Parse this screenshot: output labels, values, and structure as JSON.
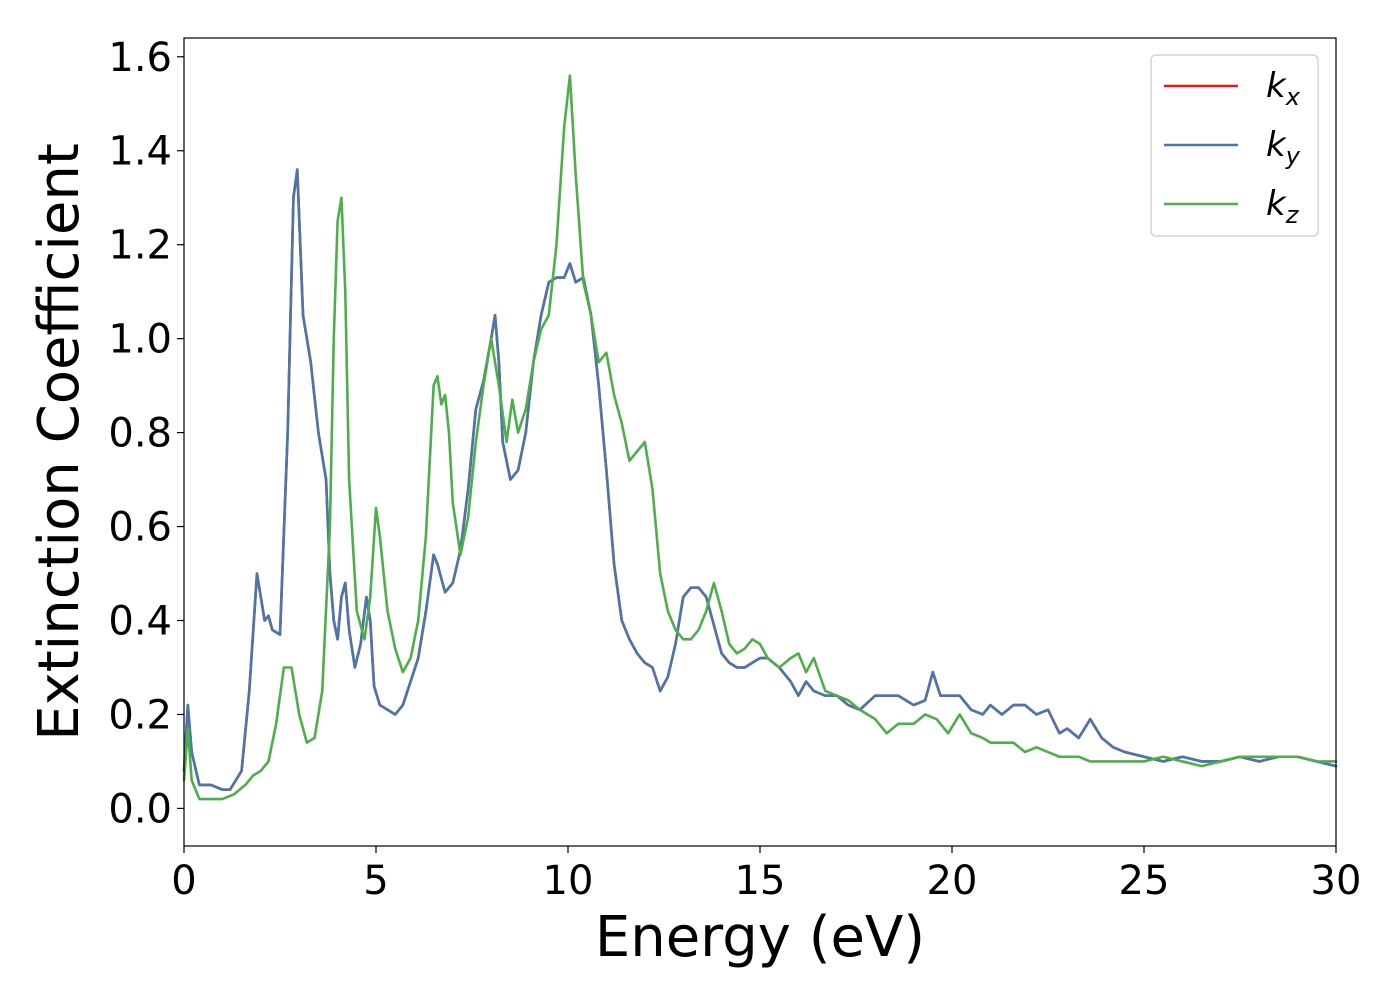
{
  "chart_data": {
    "type": "line",
    "title": "",
    "xlabel": "Energy (eV)",
    "ylabel": "Extinction Coefficient",
    "xlim": [
      0,
      30
    ],
    "ylim": [
      -0.08,
      1.64
    ],
    "xticks": [
      0,
      5,
      10,
      15,
      20,
      25,
      30
    ],
    "xtick_labels": [
      "0",
      "5",
      "10",
      "15",
      "20",
      "25",
      "30"
    ],
    "yticks": [
      0.0,
      0.2,
      0.4,
      0.6,
      0.8,
      1.0,
      1.2,
      1.4,
      1.6
    ],
    "ytick_labels": [
      "0.0",
      "0.2",
      "0.4",
      "0.6",
      "0.8",
      "1.0",
      "1.2",
      "1.4",
      "1.6"
    ],
    "grid": false,
    "legend_position": "top-right",
    "series": [
      {
        "name": "k",
        "subscript": "x",
        "color": "#e41a1c",
        "x": [
          0,
          0.1,
          0.2,
          0.4,
          0.7,
          1.0,
          1.2,
          1.5,
          1.7,
          1.9,
          2.0,
          2.1,
          2.2,
          2.3,
          2.5,
          2.7,
          2.85,
          2.95,
          3.1,
          3.3,
          3.5,
          3.7,
          3.8,
          3.9,
          4.0,
          4.1,
          4.2,
          4.3,
          4.45,
          4.6,
          4.75,
          4.85,
          4.95,
          5.1,
          5.3,
          5.5,
          5.7,
          5.9,
          6.1,
          6.3,
          6.5,
          6.6,
          6.8,
          7.0,
          7.2,
          7.4,
          7.6,
          7.8,
          8.0,
          8.1,
          8.2,
          8.3,
          8.5,
          8.7,
          8.9,
          9.1,
          9.3,
          9.5,
          9.7,
          9.9,
          10.05,
          10.2,
          10.4,
          10.6,
          10.8,
          11.0,
          11.2,
          11.4,
          11.6,
          11.8,
          12.0,
          12.2,
          12.4,
          12.6,
          12.8,
          13.0,
          13.2,
          13.4,
          13.6,
          13.8,
          14.0,
          14.2,
          14.4,
          14.6,
          14.8,
          15.0,
          15.2,
          15.5,
          15.8,
          16.0,
          16.2,
          16.4,
          16.7,
          17.0,
          17.3,
          17.6,
          18.0,
          18.3,
          18.6,
          19.0,
          19.3,
          19.5,
          19.7,
          19.9,
          20.2,
          20.5,
          20.8,
          21.0,
          21.3,
          21.6,
          21.9,
          22.2,
          22.5,
          22.8,
          23.0,
          23.3,
          23.6,
          23.9,
          24.2,
          24.5,
          25.0,
          25.5,
          26.0,
          26.5,
          27.0,
          27.5,
          28.0,
          28.5,
          29.0,
          29.5,
          30.0
        ],
        "y": [
          0.08,
          0.22,
          0.12,
          0.05,
          0.05,
          0.04,
          0.04,
          0.08,
          0.25,
          0.5,
          0.45,
          0.4,
          0.41,
          0.38,
          0.37,
          0.8,
          1.3,
          1.36,
          1.05,
          0.95,
          0.8,
          0.7,
          0.5,
          0.4,
          0.36,
          0.45,
          0.48,
          0.38,
          0.3,
          0.35,
          0.45,
          0.4,
          0.26,
          0.22,
          0.21,
          0.2,
          0.22,
          0.27,
          0.32,
          0.42,
          0.54,
          0.52,
          0.46,
          0.48,
          0.55,
          0.68,
          0.85,
          0.91,
          1.0,
          1.05,
          0.95,
          0.78,
          0.7,
          0.72,
          0.8,
          0.95,
          1.05,
          1.12,
          1.13,
          1.13,
          1.16,
          1.12,
          1.13,
          1.05,
          0.9,
          0.72,
          0.52,
          0.4,
          0.36,
          0.33,
          0.31,
          0.3,
          0.25,
          0.28,
          0.35,
          0.45,
          0.47,
          0.47,
          0.45,
          0.39,
          0.33,
          0.31,
          0.3,
          0.3,
          0.31,
          0.32,
          0.32,
          0.3,
          0.27,
          0.24,
          0.27,
          0.25,
          0.24,
          0.24,
          0.22,
          0.21,
          0.24,
          0.24,
          0.24,
          0.22,
          0.23,
          0.29,
          0.24,
          0.24,
          0.24,
          0.21,
          0.2,
          0.22,
          0.2,
          0.22,
          0.22,
          0.2,
          0.21,
          0.16,
          0.17,
          0.15,
          0.19,
          0.15,
          0.13,
          0.12,
          0.11,
          0.1,
          0.11,
          0.1,
          0.1,
          0.11,
          0.1,
          0.11,
          0.11,
          0.1,
          0.09
        ]
      },
      {
        "name": "k",
        "subscript": "y",
        "color": "#4a76ae",
        "x": [
          0,
          0.1,
          0.2,
          0.4,
          0.7,
          1.0,
          1.2,
          1.5,
          1.7,
          1.9,
          2.0,
          2.1,
          2.2,
          2.3,
          2.5,
          2.7,
          2.85,
          2.95,
          3.1,
          3.3,
          3.5,
          3.7,
          3.8,
          3.9,
          4.0,
          4.1,
          4.2,
          4.3,
          4.45,
          4.6,
          4.75,
          4.85,
          4.95,
          5.1,
          5.3,
          5.5,
          5.7,
          5.9,
          6.1,
          6.3,
          6.5,
          6.6,
          6.8,
          7.0,
          7.2,
          7.4,
          7.6,
          7.8,
          8.0,
          8.1,
          8.2,
          8.3,
          8.5,
          8.7,
          8.9,
          9.1,
          9.3,
          9.5,
          9.7,
          9.9,
          10.05,
          10.2,
          10.4,
          10.6,
          10.8,
          11.0,
          11.2,
          11.4,
          11.6,
          11.8,
          12.0,
          12.2,
          12.4,
          12.6,
          12.8,
          13.0,
          13.2,
          13.4,
          13.6,
          13.8,
          14.0,
          14.2,
          14.4,
          14.6,
          14.8,
          15.0,
          15.2,
          15.5,
          15.8,
          16.0,
          16.2,
          16.4,
          16.7,
          17.0,
          17.3,
          17.6,
          18.0,
          18.3,
          18.6,
          19.0,
          19.3,
          19.5,
          19.7,
          19.9,
          20.2,
          20.5,
          20.8,
          21.0,
          21.3,
          21.6,
          21.9,
          22.2,
          22.5,
          22.8,
          23.0,
          23.3,
          23.6,
          23.9,
          24.2,
          24.5,
          25.0,
          25.5,
          26.0,
          26.5,
          27.0,
          27.5,
          28.0,
          28.5,
          29.0,
          29.5,
          30.0
        ],
        "y": [
          0.08,
          0.22,
          0.12,
          0.05,
          0.05,
          0.04,
          0.04,
          0.08,
          0.25,
          0.5,
          0.45,
          0.4,
          0.41,
          0.38,
          0.37,
          0.8,
          1.3,
          1.36,
          1.05,
          0.95,
          0.8,
          0.7,
          0.5,
          0.4,
          0.36,
          0.45,
          0.48,
          0.38,
          0.3,
          0.35,
          0.45,
          0.4,
          0.26,
          0.22,
          0.21,
          0.2,
          0.22,
          0.27,
          0.32,
          0.42,
          0.54,
          0.52,
          0.46,
          0.48,
          0.55,
          0.68,
          0.85,
          0.91,
          1.0,
          1.05,
          0.95,
          0.78,
          0.7,
          0.72,
          0.8,
          0.95,
          1.05,
          1.12,
          1.13,
          1.13,
          1.16,
          1.12,
          1.13,
          1.05,
          0.9,
          0.72,
          0.52,
          0.4,
          0.36,
          0.33,
          0.31,
          0.3,
          0.25,
          0.28,
          0.35,
          0.45,
          0.47,
          0.47,
          0.45,
          0.39,
          0.33,
          0.31,
          0.3,
          0.3,
          0.31,
          0.32,
          0.32,
          0.3,
          0.27,
          0.24,
          0.27,
          0.25,
          0.24,
          0.24,
          0.22,
          0.21,
          0.24,
          0.24,
          0.24,
          0.22,
          0.23,
          0.29,
          0.24,
          0.24,
          0.24,
          0.21,
          0.2,
          0.22,
          0.2,
          0.22,
          0.22,
          0.2,
          0.21,
          0.16,
          0.17,
          0.15,
          0.19,
          0.15,
          0.13,
          0.12,
          0.11,
          0.1,
          0.11,
          0.1,
          0.1,
          0.11,
          0.1,
          0.11,
          0.11,
          0.1,
          0.09
        ]
      },
      {
        "name": "k",
        "subscript": "z",
        "color": "#4daf4a",
        "x": [
          0,
          0.1,
          0.2,
          0.4,
          0.7,
          1.0,
          1.3,
          1.6,
          1.8,
          2.0,
          2.2,
          2.4,
          2.6,
          2.8,
          3.0,
          3.2,
          3.4,
          3.6,
          3.8,
          3.9,
          4.0,
          4.1,
          4.2,
          4.3,
          4.5,
          4.7,
          4.85,
          5.0,
          5.1,
          5.3,
          5.5,
          5.7,
          5.9,
          6.1,
          6.3,
          6.5,
          6.6,
          6.7,
          6.8,
          6.9,
          7.0,
          7.2,
          7.4,
          7.6,
          7.8,
          8.0,
          8.2,
          8.4,
          8.55,
          8.7,
          8.9,
          9.1,
          9.3,
          9.5,
          9.7,
          9.9,
          10.05,
          10.2,
          10.4,
          10.6,
          10.8,
          11.0,
          11.2,
          11.4,
          11.6,
          11.8,
          12.0,
          12.2,
          12.4,
          12.6,
          12.8,
          13.0,
          13.2,
          13.4,
          13.6,
          13.8,
          14.0,
          14.2,
          14.4,
          14.6,
          14.8,
          15.0,
          15.2,
          15.5,
          15.8,
          16.0,
          16.2,
          16.4,
          16.7,
          17.0,
          17.3,
          17.6,
          18.0,
          18.3,
          18.6,
          19.0,
          19.3,
          19.6,
          19.9,
          20.2,
          20.5,
          20.8,
          21.0,
          21.3,
          21.6,
          21.9,
          22.2,
          22.5,
          22.8,
          23.0,
          23.3,
          23.6,
          23.9,
          24.2,
          24.5,
          25.0,
          25.5,
          26.0,
          26.5,
          27.0,
          27.5,
          28.0,
          28.5,
          29.0,
          29.5,
          30.0
        ],
        "y": [
          0.06,
          0.17,
          0.06,
          0.02,
          0.02,
          0.02,
          0.03,
          0.05,
          0.07,
          0.08,
          0.1,
          0.18,
          0.3,
          0.3,
          0.2,
          0.14,
          0.15,
          0.25,
          0.6,
          1.0,
          1.25,
          1.3,
          1.1,
          0.7,
          0.42,
          0.36,
          0.45,
          0.64,
          0.58,
          0.42,
          0.34,
          0.29,
          0.32,
          0.4,
          0.58,
          0.9,
          0.92,
          0.86,
          0.88,
          0.8,
          0.65,
          0.54,
          0.62,
          0.78,
          0.9,
          1.0,
          0.9,
          0.78,
          0.87,
          0.8,
          0.85,
          0.95,
          1.02,
          1.05,
          1.2,
          1.45,
          1.56,
          1.35,
          1.12,
          1.05,
          0.95,
          0.97,
          0.88,
          0.82,
          0.74,
          0.76,
          0.78,
          0.68,
          0.5,
          0.42,
          0.38,
          0.36,
          0.36,
          0.38,
          0.42,
          0.48,
          0.42,
          0.35,
          0.33,
          0.34,
          0.36,
          0.35,
          0.32,
          0.3,
          0.32,
          0.33,
          0.29,
          0.32,
          0.25,
          0.24,
          0.23,
          0.21,
          0.19,
          0.16,
          0.18,
          0.18,
          0.2,
          0.19,
          0.16,
          0.2,
          0.16,
          0.15,
          0.14,
          0.14,
          0.14,
          0.12,
          0.13,
          0.12,
          0.11,
          0.11,
          0.11,
          0.1,
          0.1,
          0.1,
          0.1,
          0.1,
          0.11,
          0.1,
          0.09,
          0.1,
          0.11,
          0.11,
          0.11,
          0.11,
          0.1,
          0.1
        ]
      }
    ]
  }
}
